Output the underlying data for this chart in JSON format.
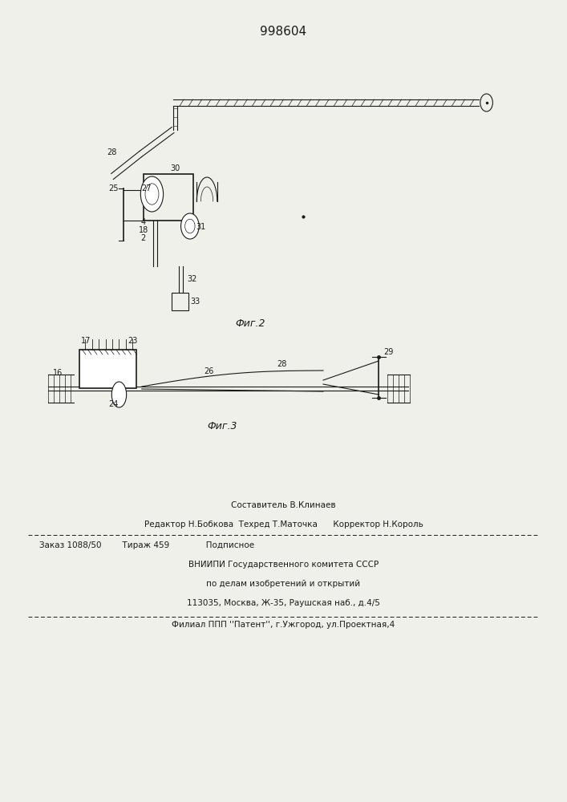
{
  "patent_number": "998604",
  "background_color": "#f0f0eb",
  "line_color": "#1a1a1a",
  "fig2_caption": "Фиг.2",
  "fig3_caption": "Фиг.3",
  "footer_line1_center": "Составитель В.Клинаев",
  "footer_line2": "Редактор Н.Бобкова  Техред Т.Маточка      Корректор Н.Король",
  "footer_line3": "Заказ 1088/50        Тираж 459              Подписное",
  "footer_line4": "ВНИИПИ Государственного комитета СССР",
  "footer_line5": "по делам изобретений и открытий",
  "footer_line6": "113035, Москва, Ж-35, Раушская наб., д.4/5",
  "footer_line7": "Филиал ППП ''Патент'', г.Ужгород, ул.Проектная,4"
}
